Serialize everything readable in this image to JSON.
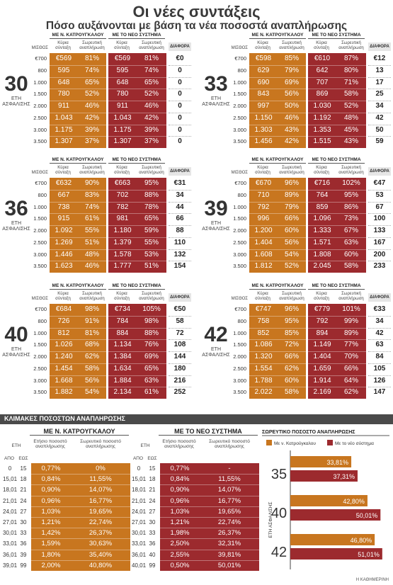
{
  "title": "Οι νέες συντάξεις",
  "subtitle": "Πόσο αυξάνονται με βάση τα νέα ποσοστά αναπλήρωσης",
  "headers": {
    "old_system": "ΜΕ Ν. ΚΑΤΡΟΥΓΚΑΛΟΥ",
    "new_system": "ΜΕ ΤΟ ΝΕΟ ΣΥΣΤΗΜΑ",
    "salary": "ΜΙΣΘΟΣ",
    "main_pension": "Κύρια σύνταξη",
    "cumulative_rate": "Σωρευτική αναπλήρωση",
    "difference": "ΔΙΑΦΟΡΑ",
    "years_label": "ΕΤΗ ΑΣΦΑΛΙΣΗΣ"
  },
  "salaries": [
    "€700",
    "800",
    "1.000",
    "1.500",
    "2.000",
    "2.500",
    "3.000",
    "3.500"
  ],
  "panels": [
    {
      "years": "30",
      "old_pension": [
        "€569",
        "595",
        "648",
        "780",
        "911",
        "1.043",
        "1.175",
        "1.307"
      ],
      "old_rate": [
        "81%",
        "74%",
        "65%",
        "52%",
        "46%",
        "42%",
        "39%",
        "37%"
      ],
      "new_pension": [
        "€569",
        "595",
        "648",
        "780",
        "911",
        "1.043",
        "1.175",
        "1.307"
      ],
      "new_rate": [
        "81%",
        "74%",
        "65%",
        "52%",
        "46%",
        "42%",
        "39%",
        "37%"
      ],
      "diff": [
        "€0",
        "0",
        "0",
        "0",
        "0",
        "0",
        "0",
        "0"
      ]
    },
    {
      "years": "33",
      "old_pension": [
        "€598",
        "629",
        "690",
        "843",
        "997",
        "1.150",
        "1.303",
        "1.456"
      ],
      "old_rate": [
        "85%",
        "79%",
        "69%",
        "56%",
        "50%",
        "46%",
        "43%",
        "42%"
      ],
      "new_pension": [
        "€610",
        "642",
        "707",
        "869",
        "1.030",
        "1.192",
        "1.353",
        "1.515"
      ],
      "new_rate": [
        "87%",
        "80%",
        "71%",
        "58%",
        "52%",
        "48%",
        "45%",
        "43%"
      ],
      "diff": [
        "€12",
        "13",
        "17",
        "25",
        "34",
        "42",
        "50",
        "59"
      ]
    },
    {
      "years": "36",
      "old_pension": [
        "€632",
        "667",
        "738",
        "915",
        "1.092",
        "1.269",
        "1.446",
        "1.623"
      ],
      "old_rate": [
        "90%",
        "83%",
        "74%",
        "61%",
        "55%",
        "51%",
        "48%",
        "46%"
      ],
      "new_pension": [
        "€663",
        "702",
        "782",
        "981",
        "1.180",
        "1.379",
        "1.578",
        "1.777"
      ],
      "new_rate": [
        "95%",
        "88%",
        "78%",
        "65%",
        "59%",
        "55%",
        "53%",
        "51%"
      ],
      "diff": [
        "€31",
        "34",
        "44",
        "66",
        "88",
        "110",
        "132",
        "154"
      ]
    },
    {
      "years": "39",
      "old_pension": [
        "€670",
        "710",
        "792",
        "996",
        "1.200",
        "1.404",
        "1.608",
        "1.812"
      ],
      "old_rate": [
        "96%",
        "89%",
        "79%",
        "66%",
        "60%",
        "56%",
        "54%",
        "52%"
      ],
      "new_pension": [
        "€716",
        "764",
        "859",
        "1.096",
        "1.333",
        "1.571",
        "1.808",
        "2.045"
      ],
      "new_rate": [
        "102%",
        "95%",
        "86%",
        "73%",
        "67%",
        "63%",
        "60%",
        "58%"
      ],
      "diff": [
        "€47",
        "53",
        "67",
        "100",
        "133",
        "167",
        "200",
        "233"
      ]
    },
    {
      "years": "40",
      "old_pension": [
        "€684",
        "726",
        "812",
        "1.026",
        "1.240",
        "1.454",
        "1.668",
        "1.882"
      ],
      "old_rate": [
        "98%",
        "91%",
        "81%",
        "68%",
        "62%",
        "58%",
        "56%",
        "54%"
      ],
      "new_pension": [
        "€734",
        "784",
        "884",
        "1.134",
        "1.384",
        "1.634",
        "1.884",
        "2.134"
      ],
      "new_rate": [
        "105%",
        "98%",
        "88%",
        "76%",
        "69%",
        "65%",
        "63%",
        "61%"
      ],
      "diff": [
        "€50",
        "58",
        "72",
        "108",
        "144",
        "180",
        "216",
        "252"
      ]
    },
    {
      "years": "42",
      "old_pension": [
        "€747",
        "758",
        "852",
        "1.086",
        "1.320",
        "1.554",
        "1.788",
        "2.022"
      ],
      "old_rate": [
        "96%",
        "95%",
        "85%",
        "72%",
        "66%",
        "62%",
        "60%",
        "58%"
      ],
      "new_pension": [
        "€779",
        "792",
        "894",
        "1.149",
        "1.404",
        "1.659",
        "1.914",
        "2.169"
      ],
      "new_rate": [
        "101%",
        "99%",
        "89%",
        "77%",
        "70%",
        "66%",
        "64%",
        "62%"
      ],
      "diff": [
        "€33",
        "34",
        "42",
        "63",
        "84",
        "105",
        "126",
        "147"
      ]
    }
  ],
  "section_title": "ΚΛΙΜΑΚΕΣ ΠΟΣΟΣΤΩΝ ΑΝΑΠΛΗΡΩΣΗΣ",
  "scale_headers": {
    "years": "ΕΤΗ",
    "from": "ΑΠΟ",
    "to": "ΕΩΣ",
    "annual_rate": "Ετήσιο ποσοστό αναπλήρωσης",
    "cumulative_rate": "Σωρευτικό ποσοστό αναπλήρωσης"
  },
  "scale_from": [
    "0",
    "15,01",
    "18,01",
    "21,01",
    "24,01",
    "27,01",
    "30,01",
    "33,01",
    "36,01",
    "39,01"
  ],
  "scale_to": [
    "15",
    "18",
    "21",
    "24",
    "27",
    "30",
    "33",
    "36",
    "39",
    "99"
  ],
  "old_scale": {
    "annual": [
      "0,77%",
      "0,84%",
      "0,90%",
      "0,96%",
      "1,03%",
      "1,21%",
      "1,42%",
      "1,59%",
      "1,80%",
      "2,00%"
    ],
    "cumulative": [
      "0%",
      "11,55%",
      "14,07%",
      "16,77%",
      "19,65%",
      "22,74%",
      "26,37%",
      "30,63%",
      "35,40%",
      "40,80%"
    ]
  },
  "new_scale_from": [
    "0",
    "15,01",
    "18,01",
    "21,01",
    "24,01",
    "27,01",
    "30,01",
    "33,01",
    "36,01",
    "40,01"
  ],
  "new_scale_to": [
    "15",
    "18",
    "21",
    "24",
    "27",
    "30",
    "33",
    "36",
    "40",
    "99"
  ],
  "new_scale": {
    "annual": [
      "0,77%",
      "0,84%",
      "0,90%",
      "0,96%",
      "1,03%",
      "1,21%",
      "1,98%",
      "2,50%",
      "2,55%",
      "0,50%"
    ],
    "cumulative": [
      "-",
      "11,55%",
      "14,07%",
      "16,77%",
      "19,65%",
      "22,74%",
      "26,37%",
      "32,31%",
      "39,81%",
      "50,01%"
    ]
  },
  "chart_data": {
    "type": "bar",
    "title": "ΣΩΡΕΥΤΙΚΟ ΠΟΣΟΣΤΟ ΑΝΑΠΛΗΡΩΣΗΣ",
    "ylabel": "ΕΤΗ ΑΣΦΑΛΙΣΗΣ",
    "categories": [
      "35",
      "40",
      "42"
    ],
    "series": [
      {
        "name": "Με ν. Κατρούγκαλου",
        "values": [
          33.81,
          42.8,
          46.8
        ],
        "labels": [
          "33,81%",
          "42,80%",
          "46,80%"
        ]
      },
      {
        "name": "Με το νέο σύστημα",
        "values": [
          37.31,
          50.01,
          51.01
        ],
        "labels": [
          "37,31%",
          "50,01%",
          "51,01%"
        ]
      }
    ],
    "orientation": "horizontal",
    "xlim": [
      0,
      55
    ],
    "legend": "top"
  },
  "colors": {
    "old": "#c8761f",
    "new": "#9c2a2e",
    "section": "#4a4a4a"
  },
  "credit": "Η ΚΑΘΗΜΕΡΙΝΗ"
}
